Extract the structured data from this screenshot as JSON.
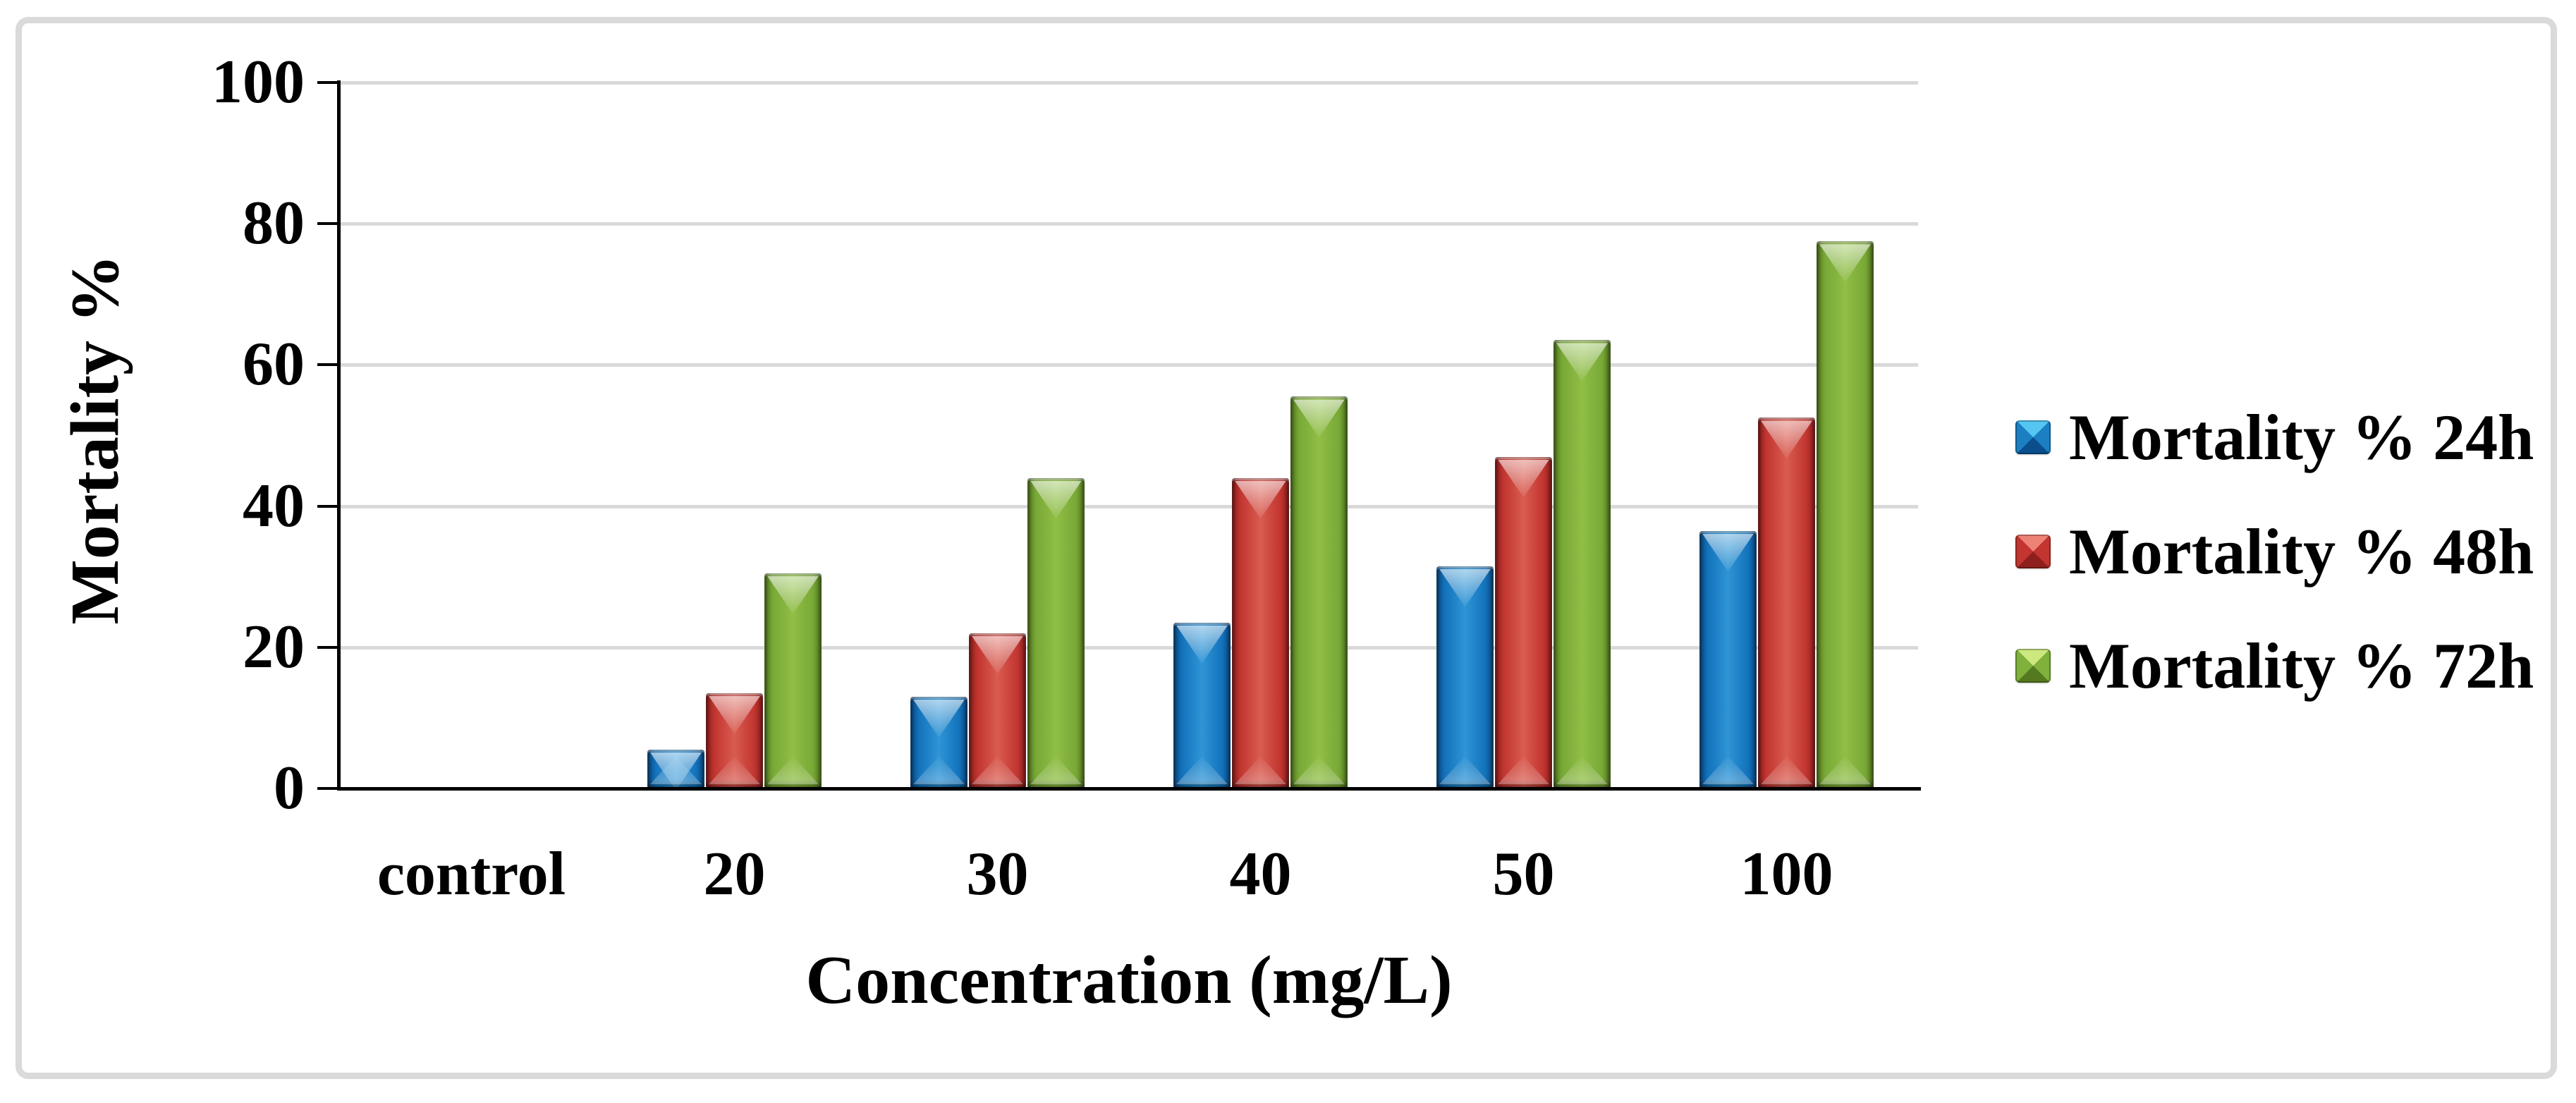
{
  "chart_data": {
    "type": "bar",
    "title": "",
    "categories": [
      "control",
      "20",
      "30",
      "40",
      "50",
      "100"
    ],
    "series": [
      {
        "name": "Mortality % 24h",
        "color": "#1373BC",
        "values": [
          0,
          5.5,
          13,
          23.5,
          31.5,
          36.5
        ]
      },
      {
        "name": "Mortality % 48h",
        "color": "#C23530",
        "values": [
          0,
          13.5,
          22,
          44,
          47,
          52.5
        ]
      },
      {
        "name": "Mortality % 72h",
        "color": "#78A836",
        "values": [
          0,
          30.5,
          44,
          55.5,
          63.5,
          77.5
        ]
      }
    ],
    "xlabel": "Concentration (mg/L)",
    "ylabel": "Mortality %",
    "ylim": [
      0,
      100
    ],
    "yticks": [
      0,
      20,
      40,
      60,
      80,
      100
    ],
    "grid": true,
    "gridline_color": "#D9D9D9",
    "axis_color": "#000000",
    "border_color": "#DADADA",
    "background": "#FFFFFF",
    "legend_position": "right"
  }
}
